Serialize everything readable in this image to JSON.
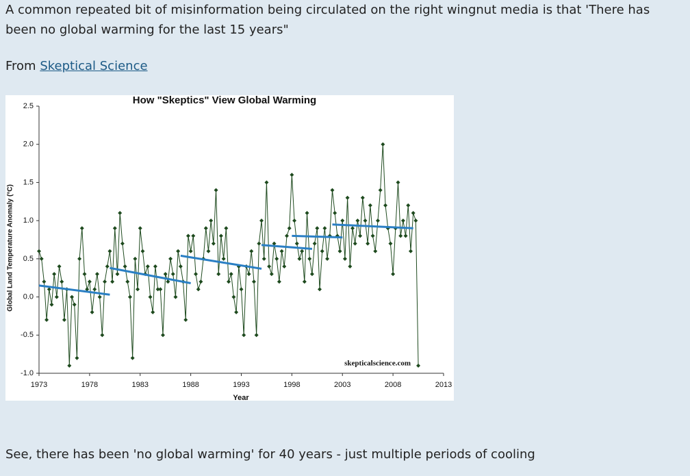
{
  "post": {
    "intro": "A common repeated bit of misinformation being circulated on the right wingnut media is that 'There has been no global warming for the last 15 years\"",
    "from_label": "From",
    "link": "Skeptical Science",
    "closing": "See, there has been 'no global warming' for 40 years - just multiple periods of cooling"
  },
  "chart_data": {
    "type": "line",
    "title": "How \"Skeptics\" View Global Warming",
    "xlabel": "Year",
    "ylabel": "Global Land Temperature Anomaly (°C)",
    "annotation": "skepticalscience.com",
    "xlim": [
      1973,
      2013
    ],
    "xticks": [
      1973,
      1978,
      1983,
      1988,
      1993,
      1998,
      2003,
      2008,
      2013
    ],
    "ylim": [
      -1,
      2.5
    ],
    "yticks": [
      {
        "value": -1,
        "label": "-1.0"
      },
      -0.5,
      {
        "value": 0,
        "label": "0.0"
      },
      0.5,
      {
        "value": 1,
        "label": "1.0"
      },
      1.5,
      {
        "value": 2,
        "label": "2.0"
      },
      2.5
    ],
    "series": [
      {
        "color": "#1e4a1e",
        "marker": "diamond",
        "x": [
          1973,
          1973.25,
          1973.5,
          1973.75,
          1974,
          1974.25,
          1974.5,
          1974.75,
          1975,
          1975.25,
          1975.5,
          1975.75,
          1976,
          1976.25,
          1976.5,
          1976.75,
          1977,
          1977.25,
          1977.5,
          1977.75,
          1978,
          1978.25,
          1978.5,
          1978.75,
          1979,
          1979.25,
          1979.5,
          1979.75,
          1980,
          1980.25,
          1980.5,
          1980.75,
          1981,
          1981.25,
          1981.5,
          1981.75,
          1982,
          1982.25,
          1982.5,
          1982.75,
          1983,
          1983.25,
          1983.5,
          1983.75,
          1984,
          1984.25,
          1984.5,
          1984.75,
          1985,
          1985.25,
          1985.5,
          1985.75,
          1986,
          1986.25,
          1986.5,
          1986.75,
          1987,
          1987.25,
          1987.5,
          1987.75,
          1988,
          1988.25,
          1988.5,
          1988.75,
          1989,
          1989.25,
          1989.5,
          1989.75,
          1990,
          1990.25,
          1990.5,
          1990.75,
          1991,
          1991.25,
          1991.5,
          1991.75,
          1992,
          1992.25,
          1992.5,
          1992.75,
          1993,
          1993.25,
          1993.5,
          1993.75,
          1994,
          1994.25,
          1994.5,
          1994.75,
          1995,
          1995.25,
          1995.5,
          1995.75,
          1996,
          1996.25,
          1996.5,
          1996.75,
          1997,
          1997.25,
          1997.5,
          1997.75,
          1998,
          1998.25,
          1998.5,
          1998.75,
          1999,
          1999.25,
          1999.5,
          1999.75,
          2000,
          2000.25,
          2000.5,
          2000.75,
          2001,
          2001.25,
          2001.5,
          2001.75,
          2002,
          2002.25,
          2002.5,
          2002.75,
          2003,
          2003.25,
          2003.5,
          2003.75,
          2004,
          2004.25,
          2004.5,
          2004.75,
          2005,
          2005.25,
          2005.5,
          2005.75,
          2006,
          2006.25,
          2006.5,
          2006.75,
          2007,
          2007.25,
          2007.5,
          2007.75,
          2008,
          2008.25,
          2008.5,
          2008.75,
          2009,
          2009.25,
          2009.5,
          2009.75,
          2010,
          2010.25,
          2010.5
        ],
        "values": [
          0.6,
          0.5,
          0.2,
          -0.3,
          0.1,
          -0.1,
          0.3,
          0.0,
          0.4,
          0.2,
          -0.3,
          0.1,
          -0.9,
          0.0,
          -0.1,
          -0.8,
          0.5,
          0.9,
          0.3,
          0.1,
          0.2,
          -0.2,
          0.1,
          0.3,
          0.0,
          -0.5,
          0.2,
          0.4,
          0.6,
          0.2,
          0.9,
          0.3,
          1.1,
          0.7,
          0.4,
          0.2,
          0.0,
          -0.8,
          0.5,
          0.1,
          0.9,
          0.6,
          0.3,
          0.4,
          0.0,
          -0.2,
          0.4,
          0.1,
          0.1,
          -0.5,
          0.3,
          0.2,
          0.5,
          0.3,
          0.0,
          0.6,
          0.4,
          0.2,
          -0.3,
          0.8,
          0.6,
          0.8,
          0.3,
          0.1,
          0.2,
          0.5,
          0.9,
          0.6,
          1.0,
          0.7,
          1.4,
          0.3,
          0.8,
          0.5,
          0.9,
          0.2,
          0.3,
          0.0,
          -0.2,
          0.4,
          0.1,
          -0.5,
          0.4,
          0.3,
          0.6,
          0.2,
          -0.5,
          0.7,
          1.0,
          0.5,
          1.5,
          0.4,
          0.3,
          0.7,
          0.5,
          0.2,
          0.6,
          0.4,
          0.8,
          0.9,
          1.6,
          1.0,
          0.7,
          0.5,
          0.6,
          0.2,
          1.1,
          0.5,
          0.3,
          0.7,
          0.9,
          0.1,
          0.6,
          0.9,
          0.5,
          0.8,
          1.4,
          1.1,
          0.8,
          0.6,
          1.0,
          0.5,
          1.3,
          0.4,
          0.9,
          0.7,
          1.0,
          0.8,
          1.3,
          1.0,
          0.7,
          1.2,
          0.8,
          0.6,
          1.0,
          1.4,
          2.0,
          1.2,
          0.9,
          0.7,
          0.3,
          0.9,
          1.5,
          0.8,
          1.0,
          0.8,
          1.2,
          0.6,
          1.1,
          1.0,
          -0.9
        ]
      },
      {
        "color": "#2a7fc4",
        "x": [
          1973,
          1980
        ],
        "values": [
          0.15,
          0.03
        ]
      },
      {
        "color": "#2a7fc4",
        "x": [
          1980,
          1988
        ],
        "values": [
          0.38,
          0.18
        ]
      },
      {
        "color": "#2a7fc4",
        "x": [
          1987,
          1995
        ],
        "values": [
          0.54,
          0.37
        ]
      },
      {
        "color": "#2a7fc4",
        "x": [
          1995,
          2000
        ],
        "values": [
          0.68,
          0.63
        ]
      },
      {
        "color": "#2a7fc4",
        "x": [
          1998,
          2003
        ],
        "values": [
          0.8,
          0.78
        ]
      },
      {
        "color": "#2a7fc4",
        "x": [
          2002,
          2010
        ],
        "values": [
          0.95,
          0.9
        ]
      }
    ]
  }
}
